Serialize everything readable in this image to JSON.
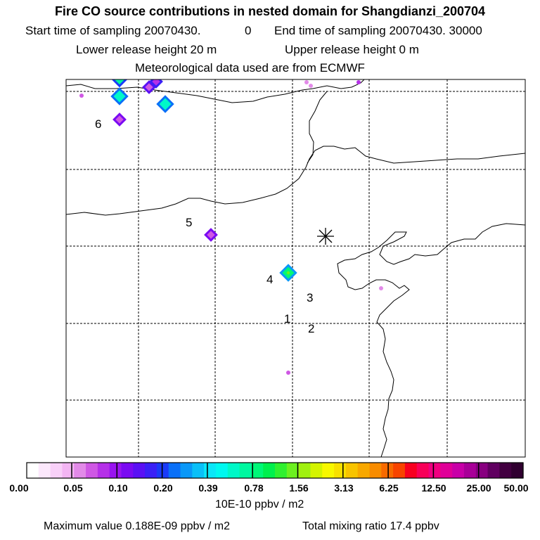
{
  "header": {
    "title": "Fire CO source contributions in nested domain for Shangdianzi_200704",
    "start_label": "Start time of sampling 20070430.",
    "start_hour": "0",
    "end_label": "End time of sampling 20070430. 30000",
    "lower_release": "Lower release height   20 m",
    "upper_release": "Upper release height    0 m",
    "met_source": "Meteorological data used are from ECMWF"
  },
  "map": {
    "receptor_marker": "asterisk-icon",
    "numbered_labels": [
      "1",
      "2",
      "3",
      "4",
      "5",
      "6"
    ]
  },
  "legend": {
    "tick_labels": [
      "0.00",
      "0.05",
      "0.10",
      "0.20",
      "0.39",
      "0.78",
      "1.56",
      "3.13",
      "6.25",
      "12.50",
      "25.00",
      "50.00"
    ],
    "colors": [
      "#ffffff",
      "#fce8fc",
      "#f8d0f8",
      "#f3b5f3",
      "#e28ae8",
      "#cf58e4",
      "#b530e8",
      "#9913f0",
      "#7a0af2",
      "#5a10f4",
      "#3a20f6",
      "#1a3af8",
      "#0a70f8",
      "#0a98f8",
      "#0ac0f8",
      "#0ae6f8",
      "#00f8f0",
      "#00f8c8",
      "#00f8a0",
      "#00f878",
      "#00f04e",
      "#30f030",
      "#6cf020",
      "#a0f010",
      "#d4f400",
      "#f8f800",
      "#f8e000",
      "#f8c400",
      "#f8a800",
      "#f88c00",
      "#f86a00",
      "#f84400",
      "#f80020",
      "#f80058",
      "#f00080",
      "#e00098",
      "#c800a8",
      "#a80098",
      "#880080",
      "#600060",
      "#420040",
      "#300030"
    ],
    "unit": "10E-10 ppbv / m2"
  },
  "footer": {
    "max_value": "Maximum value  0.188E-09 ppbv / m2",
    "total_mixing": "Total mixing ratio      17.4 ppbv"
  }
}
